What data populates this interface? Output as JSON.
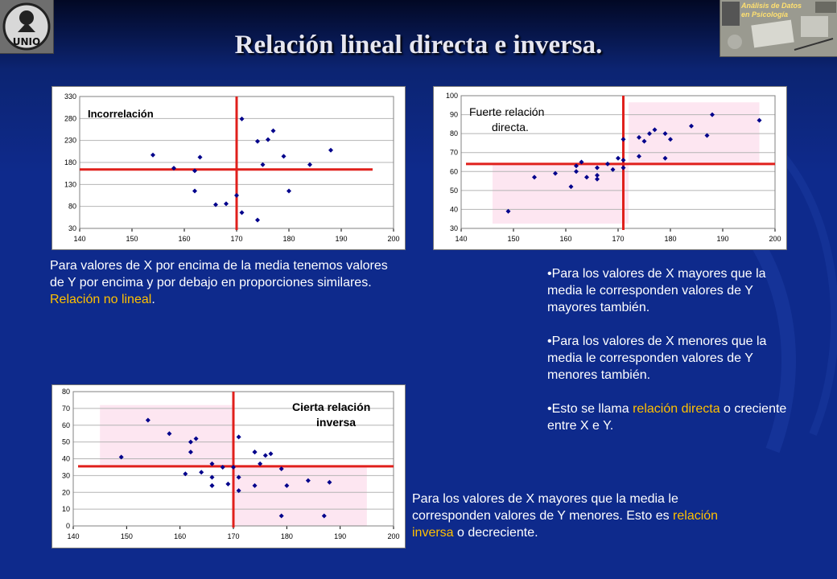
{
  "slide": {
    "title": "Relación lineal directa e inversa.",
    "logo_left_text": "UNIO",
    "logo_right_lines": [
      "Análisis de Datos",
      "en Psicología"
    ]
  },
  "texts": {
    "no_lineal": {
      "before": "Para valores de X por encima de la media tenemos valores de Y por encima y por debajo en proporciones similares. ",
      "highlight": "Relación no lineal",
      "after": "."
    },
    "directa_bullets": [
      {
        "before": "•Para los valores de X mayores que la media le corresponden valores de Y mayores también.",
        "highlight": "",
        "after": ""
      },
      {
        "before": "•Para los valores de X menores que la media le corresponden valores de Y menores también.",
        "highlight": "",
        "after": ""
      },
      {
        "before": "•Esto se llama ",
        "highlight": "relación directa",
        "after": " o creciente entre X e Y."
      }
    ],
    "inversa": {
      "before": "Para los valores de X mayores que la media le corresponden valores de Y menores. Esto es ",
      "highlight": "relación inversa",
      "after": " o decreciente."
    }
  },
  "colors": {
    "background": "#0e2a8c",
    "highlight": "#ffc000",
    "mean_line": "#e0201c",
    "point": "#00008b",
    "region": "#fde6f1"
  },
  "chart_data": [
    {
      "type": "scatter",
      "annotation": "Incorrelación",
      "xlim": [
        140,
        200
      ],
      "ylim": [
        30,
        330
      ],
      "xticks": [
        140,
        150,
        160,
        170,
        180,
        190,
        200
      ],
      "yticks": [
        30,
        80,
        130,
        180,
        230,
        280,
        330
      ],
      "grid": "horizontal",
      "x_mean": 170,
      "y_mean": 164,
      "points": [
        [
          154,
          197
        ],
        [
          158,
          167
        ],
        [
          162,
          161
        ],
        [
          162,
          115
        ],
        [
          163,
          192
        ],
        [
          166,
          84
        ],
        [
          168,
          86
        ],
        [
          170,
          105
        ],
        [
          171,
          279
        ],
        [
          171,
          66
        ],
        [
          174,
          228
        ],
        [
          174,
          49
        ],
        [
          175,
          175
        ],
        [
          176,
          232
        ],
        [
          177,
          252
        ],
        [
          179,
          194
        ],
        [
          180,
          115
        ],
        [
          184,
          175
        ],
        [
          188,
          208
        ]
      ]
    },
    {
      "type": "scatter",
      "annotation": "Fuerte relación directa.",
      "xlim": [
        140,
        200
      ],
      "ylim": [
        30,
        100
      ],
      "xticks": [
        140,
        150,
        160,
        170,
        180,
        190,
        200
      ],
      "yticks": [
        30,
        40,
        50,
        60,
        70,
        80,
        90,
        100
      ],
      "grid": "horizontal",
      "x_mean": 171,
      "y_mean": 64,
      "points": [
        [
          149,
          39
        ],
        [
          154,
          57
        ],
        [
          158,
          59
        ],
        [
          161,
          52
        ],
        [
          162,
          60
        ],
        [
          162,
          63
        ],
        [
          163,
          65
        ],
        [
          164,
          57
        ],
        [
          166,
          56
        ],
        [
          166,
          58
        ],
        [
          166,
          62
        ],
        [
          168,
          64
        ],
        [
          169,
          61
        ],
        [
          170,
          67
        ],
        [
          171,
          62
        ],
        [
          171,
          66
        ],
        [
          171,
          77
        ],
        [
          174,
          68
        ],
        [
          174,
          78
        ],
        [
          175,
          76
        ],
        [
          176,
          80
        ],
        [
          177,
          82
        ],
        [
          179,
          80
        ],
        [
          179,
          67
        ],
        [
          180,
          77
        ],
        [
          184,
          84
        ],
        [
          187,
          79
        ],
        [
          188,
          90
        ],
        [
          197,
          87
        ]
      ]
    },
    {
      "type": "scatter",
      "annotation": "Cierta relación inversa",
      "xlim": [
        140,
        200
      ],
      "ylim": [
        0,
        80
      ],
      "xticks": [
        140,
        150,
        160,
        170,
        180,
        190,
        200
      ],
      "yticks": [
        0,
        10,
        20,
        30,
        40,
        50,
        60,
        70,
        80
      ],
      "grid": "horizontal",
      "x_mean": 170,
      "y_mean": 35.5,
      "points": [
        [
          149,
          41
        ],
        [
          154,
          63
        ],
        [
          158,
          55
        ],
        [
          161,
          31
        ],
        [
          162,
          44
        ],
        [
          162,
          50
        ],
        [
          163,
          52
        ],
        [
          164,
          32
        ],
        [
          166,
          37
        ],
        [
          166,
          29
        ],
        [
          166,
          24
        ],
        [
          166,
          24
        ],
        [
          168,
          35
        ],
        [
          169,
          25
        ],
        [
          170,
          35
        ],
        [
          171,
          53
        ],
        [
          171,
          29
        ],
        [
          171,
          21
        ],
        [
          174,
          44
        ],
        [
          174,
          44
        ],
        [
          174,
          24
        ],
        [
          175,
          37
        ],
        [
          176,
          42
        ],
        [
          177,
          43
        ],
        [
          179,
          34
        ],
        [
          179,
          6
        ],
        [
          180,
          24
        ],
        [
          184,
          27
        ],
        [
          187,
          6
        ],
        [
          188,
          26
        ]
      ]
    }
  ]
}
